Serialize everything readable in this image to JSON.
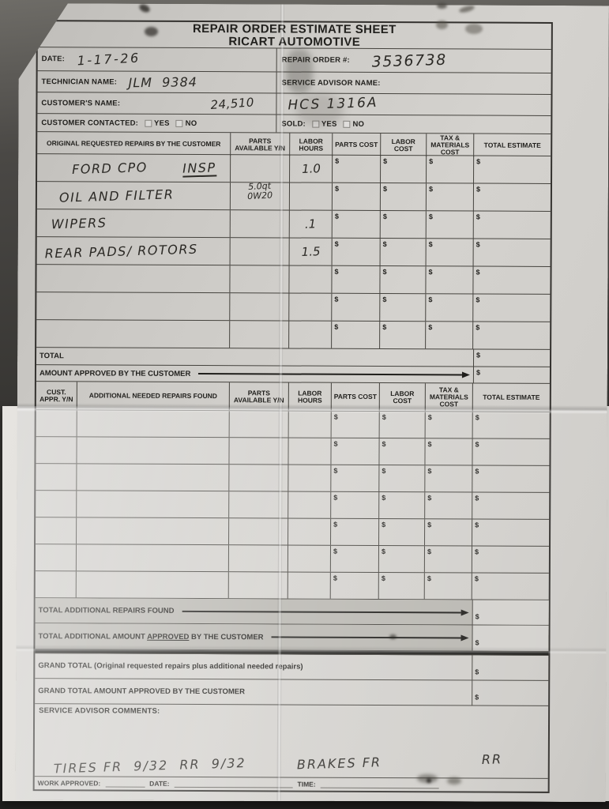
{
  "photo": {
    "background_color": "#3f3e3b",
    "paper_color": "#d2d0cc",
    "line_color": "#45433e",
    "shaded_row_color": "#b8b6b0",
    "ink_color": "#2b2925"
  },
  "header": {
    "title_line1": "REPAIR ORDER ESTIMATE SHEET",
    "title_line2": "RICART AUTOMOTIVE"
  },
  "info": {
    "date_label": "DATE:",
    "date_value": "1-17-26",
    "repair_order_label": "REPAIR ORDER #:",
    "repair_order_value": "3536738",
    "technician_label": "TECHNICIAN NAME:",
    "technician_value": "JLM  9384",
    "service_advisor_label": "SERVICE ADVISOR NAME:",
    "customer_name_label": "CUSTOMER'S NAME:",
    "customer_name_value": "24,510",
    "vehicle_value": "HCS 1316A",
    "customer_contacted_label": "CUSTOMER CONTACTED:",
    "sold_label": "SOLD:",
    "yes_label": "YES",
    "no_label": "NO"
  },
  "original_repairs_table": {
    "currency_symbol": "$",
    "columns": [
      "ORIGINAL REQUESTED REPAIRS BY THE CUSTOMER",
      "PARTS AVAILABLE Y/N",
      "LABOR HOURS",
      "PARTS COST",
      "LABOR COST",
      "TAX & MATERIALS COST",
      "TOTAL ESTIMATE"
    ],
    "rows": [
      {
        "description": "FORD CPO",
        "description_underlined": "INSP",
        "parts_available": "",
        "labor_hours": "1.0"
      },
      {
        "description": "OIL AND FILTER",
        "parts_available": "5.0qt\n0W20",
        "labor_hours": ""
      },
      {
        "description": "WIPERS",
        "parts_available": "",
        "labor_hours": ".1"
      },
      {
        "description": "REAR PADS/ ROTORS",
        "parts_available": "",
        "labor_hours": "1.5"
      },
      {
        "description": "",
        "parts_available": "",
        "labor_hours": ""
      },
      {
        "description": "",
        "parts_available": "",
        "labor_hours": ""
      },
      {
        "description": "",
        "parts_available": "",
        "labor_hours": ""
      }
    ],
    "total_label": "TOTAL",
    "amount_approved_label": "AMOUNT APPROVED BY THE CUSTOMER"
  },
  "additional_repairs_table": {
    "currency_symbol": "$",
    "columns": [
      "CUST. APPR. Y/N",
      "ADDITIONAL NEEDED REPAIRS FOUND",
      "PARTS AVAILABLE Y/N",
      "LABOR HOURS",
      "PARTS COST",
      "LABOR COST",
      "TAX & MATERIALS COST",
      "TOTAL ESTIMATE"
    ],
    "empty_row_count": 7,
    "total_additional_label": "TOTAL ADDITIONAL REPAIRS FOUND",
    "total_additional_approved_pre": "TOTAL ADDITIONAL AMOUNT ",
    "total_additional_approved_underlined": "APPROVED",
    "total_additional_approved_post": " BY THE CUSTOMER"
  },
  "summary": {
    "currency_symbol": "$",
    "grand_total_label": "GRAND TOTAL (Original requested repairs plus additional needed repairs)",
    "grand_total_approved_label": "GRAND TOTAL AMOUNT APPROVED BY THE CUSTOMER",
    "comments_label": "SERVICE ADVISOR COMMENTS:",
    "comments_handwriting_1": "TIRES FR  9/32  RR  9/32",
    "comments_handwriting_2": "BRAKES FR",
    "comments_handwriting_3": "RR",
    "work_approved_label": "WORK APPROVED:",
    "work_date_label": "DATE:",
    "work_time_label": "TIME:"
  }
}
